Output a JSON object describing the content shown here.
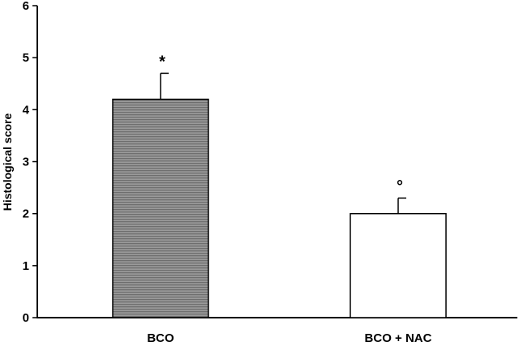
{
  "chart_data": {
    "type": "bar",
    "title": "",
    "xlabel": "",
    "ylabel": "Histological score",
    "ylim": [
      0,
      6
    ],
    "yticks": [
      "0",
      "1",
      "2",
      "3",
      "4",
      "5",
      "6"
    ],
    "categories": [
      "BCO",
      "BCO + NAC"
    ],
    "values": [
      4.2,
      2.0
    ],
    "error_upper": [
      0.5,
      0.3
    ],
    "annotations": [
      "*",
      "°"
    ],
    "bar_fill": [
      "#8c8c8c",
      "#ffffff"
    ],
    "bar_pattern": [
      "horizontal-stripes",
      "none"
    ],
    "grid": false,
    "legend": "none"
  }
}
